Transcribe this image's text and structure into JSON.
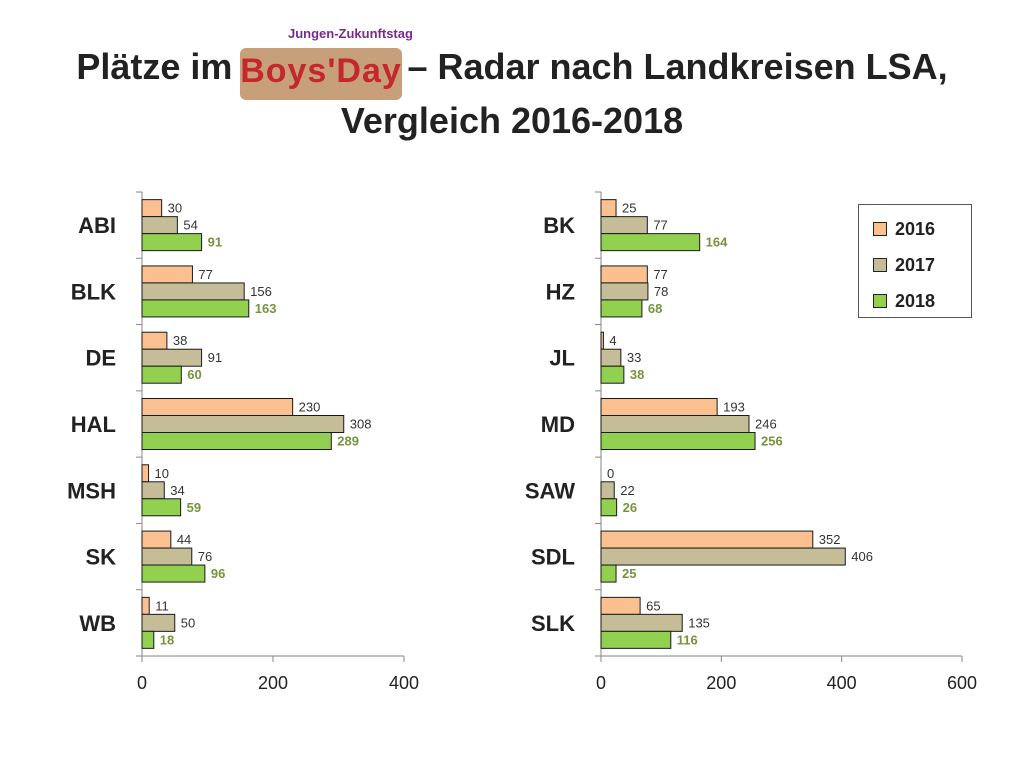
{
  "title": {
    "before_logo": "Plätze im",
    "after_logo": "– Radar nach Landkreisen LSA,",
    "line2": "Vergleich 2016-2018"
  },
  "logo": {
    "top_text": "Jungen-Zukunftstag",
    "word": "Boys'Day"
  },
  "legend": [
    "2016",
    "2017",
    "2018"
  ],
  "colors": {
    "2016": "#fac090",
    "2017": "#c4bd97",
    "2018": "#92d050",
    "label_2018": "#77933c",
    "axis": "#868686"
  },
  "chart_data": [
    {
      "type": "bar",
      "orientation": "horizontal",
      "categories": [
        "ABI",
        "BLK",
        "DE",
        "HAL",
        "MSH",
        "SK",
        "WB"
      ],
      "series": [
        {
          "name": "2016",
          "values": [
            30,
            77,
            38,
            230,
            10,
            44,
            11
          ]
        },
        {
          "name": "2017",
          "values": [
            54,
            156,
            91,
            308,
            34,
            76,
            50
          ]
        },
        {
          "name": "2018",
          "values": [
            91,
            163,
            60,
            289,
            59,
            96,
            18
          ]
        }
      ],
      "xlim": [
        0,
        400
      ],
      "xticks": [
        "0",
        "200",
        "400"
      ],
      "grid": false
    },
    {
      "type": "bar",
      "orientation": "horizontal",
      "categories": [
        "BK",
        "HZ",
        "JL",
        "MD",
        "SAW",
        "SDL",
        "SLK"
      ],
      "series": [
        {
          "name": "2016",
          "values": [
            25,
            77,
            4,
            193,
            0,
            352,
            65
          ]
        },
        {
          "name": "2017",
          "values": [
            77,
            78,
            33,
            246,
            22,
            406,
            135
          ]
        },
        {
          "name": "2018",
          "values": [
            164,
            68,
            38,
            256,
            26,
            25,
            116
          ]
        }
      ],
      "xlim": [
        0,
        600
      ],
      "xticks": [
        "0",
        "200",
        "400",
        "600"
      ],
      "grid": false,
      "legend_position": "top-right"
    }
  ]
}
